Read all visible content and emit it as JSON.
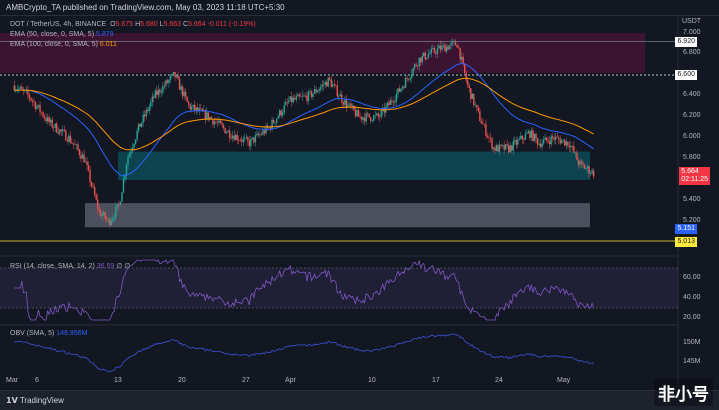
{
  "header": {
    "published": "AMBCrypto_TA published on TradingView.com, May 03, 2023 11:18 UTC+5:30"
  },
  "legend": {
    "symbol": "DOT / TetherUS, 4h, BINANCE",
    "o_label": "O",
    "o": "5.675",
    "h_label": "H",
    "h": "5.680",
    "l_label": "L",
    "l": "5.663",
    "c_label": "C",
    "c": "5.664",
    "change": "-0.011 (-0.19%)",
    "ema50": "EMA (50, close, 0, SMA, 5)",
    "ema50_val": "5.879",
    "ema100": "EMA (100, close, 0, SMA, 5)",
    "ema100_val": "6.011"
  },
  "rsi": {
    "label": "RSI (14, close, SMA, 14, 2)",
    "value": "36.59",
    "extra": "∅ ∅",
    "ticks": [
      "60.00",
      "40.00",
      "20.00"
    ]
  },
  "obv": {
    "label": "OBV (SMA, 5)",
    "value": "146.956M",
    "ticks": [
      "150M",
      "145M"
    ]
  },
  "price_axis": {
    "currency": "USDT",
    "ticks": [
      "7.000",
      "6.800",
      "6.400",
      "6.200",
      "6.000",
      "5.800",
      "5.400",
      "5.200"
    ],
    "tags": {
      "resist_high": "6.920",
      "resist": "6.600",
      "current": "5.664",
      "countdown": "02:11:25",
      "support": "5.151",
      "low": "5.013"
    }
  },
  "dates": [
    "Mar",
    "6",
    "13",
    "20",
    "27",
    "Apr",
    "10",
    "17",
    "24",
    "May"
  ],
  "footer": {
    "brand": "TradingView",
    "watermark": "非小号"
  },
  "colors": {
    "ema50": "#2962ff",
    "ema100": "#ff9800",
    "up": "#26a69a",
    "down": "#ef5350",
    "rsi": "#7e57c2",
    "obv": "#3f51d8"
  },
  "chart_data": {
    "type": "candlestick",
    "xunit": "day of Mar 2023 (Mar 1 = 1)",
    "key_closes": [
      [
        1.6,
        6.5
      ],
      [
        3.2,
        6.4
      ],
      [
        5.4,
        6.15
      ],
      [
        7.6,
        6.0
      ],
      [
        9.3,
        5.8
      ],
      [
        10.9,
        5.3
      ],
      [
        12,
        5.2
      ],
      [
        13.1,
        5.35
      ],
      [
        14,
        5.8
      ],
      [
        15.3,
        6.1
      ],
      [
        17,
        6.4
      ],
      [
        19.2,
        6.6
      ],
      [
        20.8,
        6.3
      ],
      [
        23,
        6.2
      ],
      [
        25.2,
        6.05
      ],
      [
        27.4,
        5.95
      ],
      [
        29.6,
        6.1
      ],
      [
        31.8,
        6.35
      ],
      [
        34,
        6.4
      ],
      [
        36.2,
        6.55
      ],
      [
        37.8,
        6.35
      ],
      [
        39.5,
        6.2
      ],
      [
        41.7,
        6.2
      ],
      [
        43.9,
        6.45
      ],
      [
        46.1,
        6.75
      ],
      [
        48.3,
        6.85
      ],
      [
        50.3,
        6.9
      ],
      [
        51.4,
        6.5
      ],
      [
        52.7,
        6.2
      ],
      [
        54.3,
        5.9
      ],
      [
        56,
        5.9
      ],
      [
        58.2,
        6.05
      ],
      [
        59.3,
        5.95
      ],
      [
        60.9,
        6.0
      ],
      [
        62.6,
        5.95
      ],
      [
        63.7,
        5.75
      ],
      [
        65.3,
        5.664
      ]
    ],
    "zones": [
      {
        "name": "supply",
        "from": 6.62,
        "to": 7.0
      },
      {
        "name": "demand",
        "from": 5.6,
        "to": 5.87
      },
      {
        "name": "support",
        "from": 5.15,
        "to": 5.38
      }
    ]
  }
}
